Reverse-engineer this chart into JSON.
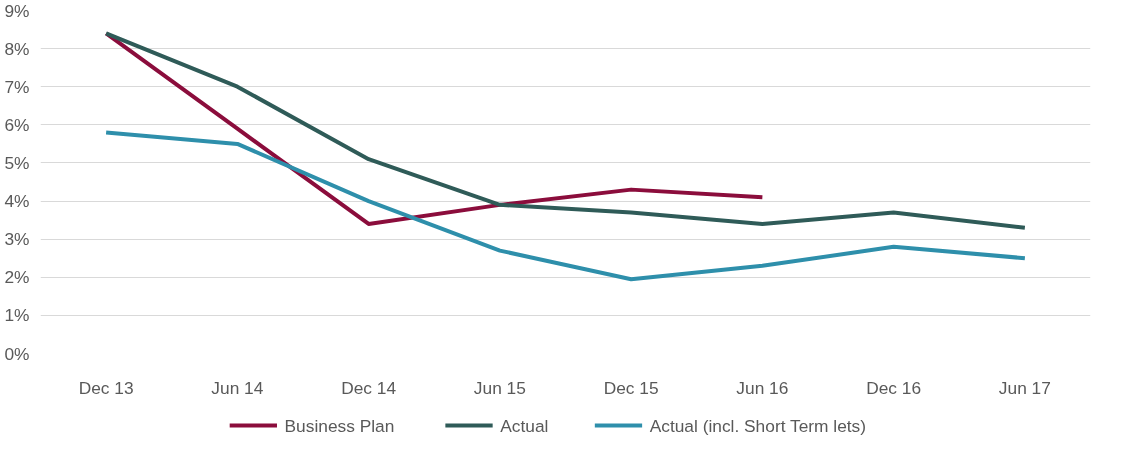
{
  "chart_data": {
    "type": "line",
    "categories": [
      "Dec 13",
      "Jun 14",
      "Dec 14",
      "Jun 15",
      "Dec 15",
      "Jun 16",
      "Dec 16",
      "Jun 17"
    ],
    "series": [
      {
        "name": "Business Plan",
        "color": "#8b0d3c",
        "values": [
          8.4,
          5.9,
          3.4,
          3.9,
          4.3,
          4.1,
          null,
          null
        ]
      },
      {
        "name": "Actual",
        "color": "#2f5b58",
        "values": [
          8.4,
          7.0,
          5.1,
          3.9,
          3.7,
          3.4,
          3.7,
          3.3
        ]
      },
      {
        "name": "Actual (incl. Short Term lets)",
        "color": "#2e8fab",
        "values": [
          5.8,
          5.5,
          4.0,
          2.7,
          1.95,
          2.3,
          2.8,
          2.5
        ]
      }
    ],
    "ylim": [
      0,
      9
    ],
    "yticks": [
      {
        "value": 0,
        "label": "0%"
      },
      {
        "value": 1,
        "label": "1%"
      },
      {
        "value": 2,
        "label": "2%"
      },
      {
        "value": 3,
        "label": "3%"
      },
      {
        "value": 4,
        "label": "4%"
      },
      {
        "value": 5,
        "label": "5%"
      },
      {
        "value": 6,
        "label": "6%"
      },
      {
        "value": 7,
        "label": "7%"
      },
      {
        "value": 8,
        "label": "8%"
      },
      {
        "value": 9,
        "label": "9%"
      }
    ],
    "grid": "y",
    "legend": "bottom",
    "marker": "none",
    "line_style": "solid"
  }
}
